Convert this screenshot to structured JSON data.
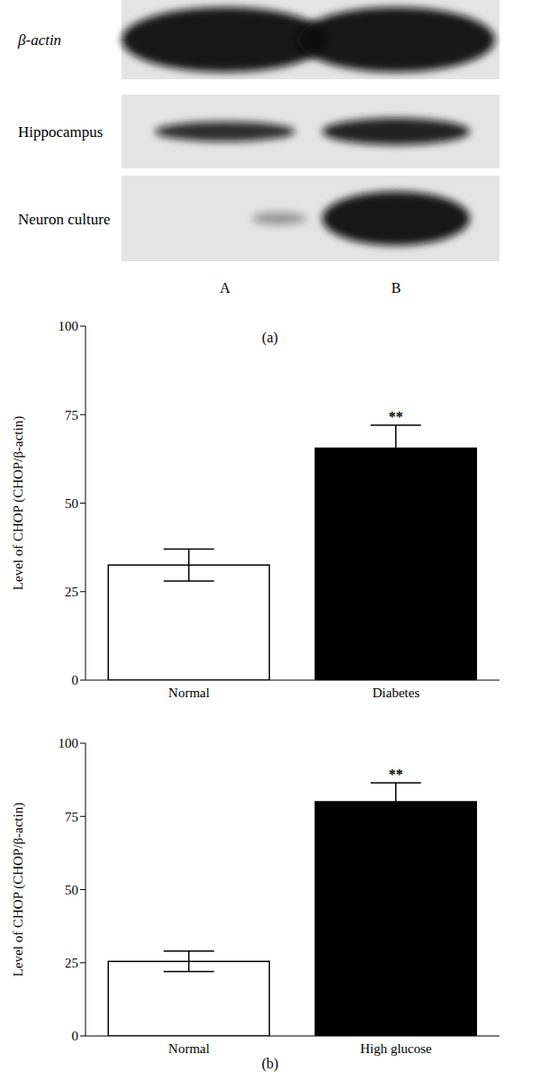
{
  "blot": {
    "rows": [
      "β-actin",
      "Hippocampus",
      "Neuron culture"
    ],
    "lanes": [
      "A",
      "B"
    ],
    "caption": "(a)"
  },
  "caption": "(b)",
  "chart_data": [
    {
      "type": "bar",
      "categories": [
        "Normal",
        "Diabetes"
      ],
      "values": [
        32.5,
        65.5
      ],
      "errors": [
        4.5,
        6.5
      ],
      "colors": [
        "#ffffff",
        "#000000"
      ],
      "annotations": [
        null,
        "**"
      ],
      "ylabel": "Level of CHOP (CHOP/β-actin)",
      "ylim": [
        0,
        100
      ],
      "yticks": [
        0,
        25,
        50,
        75,
        100
      ],
      "grid": false
    },
    {
      "type": "bar",
      "categories": [
        "Normal",
        "High glucose"
      ],
      "values": [
        25.5,
        80
      ],
      "errors": [
        3.5,
        6.5
      ],
      "colors": [
        "#ffffff",
        "#000000"
      ],
      "annotations": [
        null,
        "**"
      ],
      "ylabel": "Level of CHOP (CHOP/β-actin)",
      "ylim": [
        0,
        100
      ],
      "yticks": [
        0,
        25,
        50,
        75,
        100
      ],
      "grid": false
    }
  ]
}
